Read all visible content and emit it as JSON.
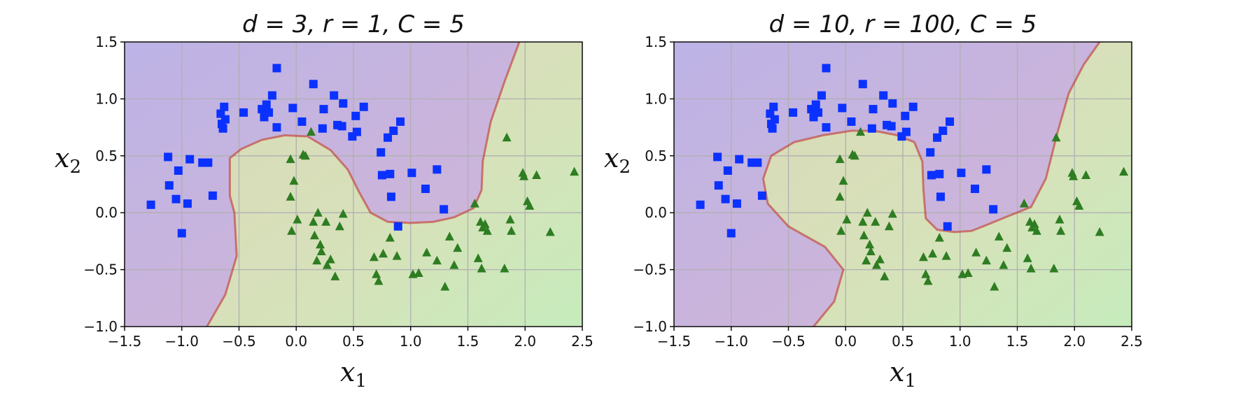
{
  "colors": {
    "class0_marker": "#0b31ff",
    "class1_marker": "#2e7d22",
    "region0": "#c8b2dd",
    "region1": "#d7e1b5",
    "boundary": "#c0392b"
  },
  "chart_data": [
    {
      "type": "scatter",
      "title": "d = 3, r = 1, C = 5",
      "xlabel": "x1",
      "ylabel": "x2",
      "xlim": [
        -1.5,
        2.5
      ],
      "ylim": [
        -1.0,
        1.5
      ],
      "xticks": [
        "−1.5",
        "−1.0",
        "−0.5",
        "0.0",
        "0.5",
        "1.0",
        "1.5",
        "2.0",
        "2.5"
      ],
      "yticks": [
        "−1.0",
        "−0.5",
        "0.0",
        "0.5",
        "1.0",
        "1.5"
      ],
      "grid": true,
      "background": "decision-function contour, purple = class 0, yellow-green = class 1",
      "decision_boundary": [
        [
          -0.78,
          -1.0
        ],
        [
          -0.62,
          -0.72
        ],
        [
          -0.52,
          -0.38
        ],
        [
          -0.54,
          0.0
        ],
        [
          -0.58,
          0.15
        ],
        [
          -0.58,
          0.48
        ],
        [
          -0.48,
          0.56
        ],
        [
          -0.3,
          0.64
        ],
        [
          -0.1,
          0.68
        ],
        [
          0.1,
          0.67
        ],
        [
          0.3,
          0.55
        ],
        [
          0.45,
          0.38
        ],
        [
          0.55,
          0.18
        ],
        [
          0.65,
          0.0
        ],
        [
          0.8,
          -0.08
        ],
        [
          1.0,
          -0.09
        ],
        [
          1.2,
          -0.08
        ],
        [
          1.38,
          -0.04
        ],
        [
          1.55,
          0.04
        ],
        [
          1.62,
          0.2
        ],
        [
          1.63,
          0.45
        ],
        [
          1.7,
          0.8
        ],
        [
          1.82,
          1.15
        ],
        [
          1.95,
          1.5
        ]
      ],
      "series": [
        {
          "marker": "square",
          "points": [
            [
              -1.27,
              0.07
            ],
            [
              -1.12,
              0.49
            ],
            [
              -1.11,
              0.24
            ],
            [
              -1.05,
              0.12
            ],
            [
              -1.03,
              0.37
            ],
            [
              -1.0,
              -0.18
            ],
            [
              -0.95,
              0.08
            ],
            [
              -0.93,
              0.47
            ],
            [
              -0.82,
              0.44
            ],
            [
              -0.77,
              0.44
            ],
            [
              -0.73,
              0.15
            ],
            [
              -0.66,
              0.87
            ],
            [
              -0.65,
              0.78
            ],
            [
              -0.64,
              0.74
            ],
            [
              -0.63,
              0.93
            ],
            [
              -0.62,
              0.82
            ],
            [
              -0.46,
              0.88
            ],
            [
              -0.3,
              0.91
            ],
            [
              -0.28,
              0.84
            ],
            [
              -0.26,
              0.95
            ],
            [
              -0.24,
              0.88
            ],
            [
              -0.21,
              1.03
            ],
            [
              -0.17,
              0.75
            ],
            [
              -0.17,
              1.27
            ],
            [
              -0.03,
              0.92
            ],
            [
              0.05,
              0.8
            ],
            [
              0.15,
              1.13
            ],
            [
              0.23,
              0.74
            ],
            [
              0.24,
              0.91
            ],
            [
              0.33,
              1.03
            ],
            [
              0.36,
              0.77
            ],
            [
              0.4,
              0.76
            ],
            [
              0.41,
              0.96
            ],
            [
              0.49,
              0.67
            ],
            [
              0.52,
              0.85
            ],
            [
              0.53,
              0.71
            ],
            [
              0.59,
              0.93
            ],
            [
              0.74,
              0.53
            ],
            [
              0.75,
              0.33
            ],
            [
              0.8,
              0.66
            ],
            [
              0.82,
              0.34
            ],
            [
              0.83,
              0.14
            ],
            [
              0.85,
              0.72
            ],
            [
              0.89,
              -0.12
            ],
            [
              0.91,
              0.8
            ],
            [
              1.01,
              0.35
            ],
            [
              1.13,
              0.21
            ],
            [
              1.23,
              0.38
            ],
            [
              1.29,
              0.03
            ]
          ]
        },
        {
          "marker": "triangle",
          "points": [
            [
              -0.05,
              0.47
            ],
            [
              -0.05,
              0.14
            ],
            [
              -0.04,
              -0.16
            ],
            [
              -0.02,
              0.28
            ],
            [
              0.01,
              -0.06
            ],
            [
              0.06,
              0.51
            ],
            [
              0.08,
              0.5
            ],
            [
              0.13,
              0.71
            ],
            [
              0.15,
              -0.08
            ],
            [
              0.16,
              -0.2
            ],
            [
              0.18,
              -0.42
            ],
            [
              0.19,
              0.0
            ],
            [
              0.21,
              -0.28
            ],
            [
              0.22,
              -0.34
            ],
            [
              0.26,
              -0.08
            ],
            [
              0.27,
              -0.46
            ],
            [
              0.3,
              -0.41
            ],
            [
              0.34,
              -0.56
            ],
            [
              0.38,
              -0.12
            ],
            [
              0.41,
              -0.01
            ],
            [
              0.68,
              -0.39
            ],
            [
              0.7,
              -0.54
            ],
            [
              0.72,
              -0.6
            ],
            [
              0.76,
              -0.36
            ],
            [
              0.82,
              -0.22
            ],
            [
              0.88,
              -0.38
            ],
            [
              1.02,
              -0.54
            ],
            [
              1.07,
              -0.53
            ],
            [
              1.14,
              -0.35
            ],
            [
              1.23,
              -0.42
            ],
            [
              1.3,
              -0.65
            ],
            [
              1.34,
              -0.21
            ],
            [
              1.38,
              -0.46
            ],
            [
              1.41,
              -0.31
            ],
            [
              1.56,
              0.08
            ],
            [
              1.59,
              -0.4
            ],
            [
              1.61,
              -0.08
            ],
            [
              1.62,
              -0.49
            ],
            [
              1.63,
              -0.13
            ],
            [
              1.65,
              -0.1
            ],
            [
              1.67,
              -0.16
            ],
            [
              1.82,
              -0.49
            ],
            [
              1.84,
              0.66
            ],
            [
              1.87,
              -0.06
            ],
            [
              1.88,
              -0.16
            ],
            [
              1.98,
              0.35
            ],
            [
              1.99,
              0.32
            ],
            [
              2.02,
              0.1
            ],
            [
              2.04,
              0.06
            ],
            [
              2.1,
              0.33
            ],
            [
              2.22,
              -0.17
            ],
            [
              2.43,
              0.36
            ]
          ]
        }
      ]
    },
    {
      "type": "scatter",
      "title": "d = 10, r = 100, C = 5",
      "xlabel": "x1",
      "ylabel": "x2",
      "xlim": [
        -1.5,
        2.5
      ],
      "ylim": [
        -1.0,
        1.5
      ],
      "xticks": [
        "−1.5",
        "−1.0",
        "−0.5",
        "0.0",
        "0.5",
        "1.0",
        "1.5",
        "2.0",
        "2.5"
      ],
      "yticks": [
        "−1.0",
        "−0.5",
        "0.0",
        "0.5",
        "1.0",
        "1.5"
      ],
      "grid": true,
      "background": "decision-function contour, purple = class 0, yellow-green = class 1",
      "decision_boundary": [
        [
          -0.28,
          -1.0
        ],
        [
          -0.1,
          -0.78
        ],
        [
          -0.02,
          -0.5
        ],
        [
          -0.18,
          -0.3
        ],
        [
          -0.5,
          -0.12
        ],
        [
          -0.68,
          0.08
        ],
        [
          -0.72,
          0.3
        ],
        [
          -0.65,
          0.5
        ],
        [
          -0.45,
          0.62
        ],
        [
          -0.2,
          0.68
        ],
        [
          0.05,
          0.72
        ],
        [
          0.25,
          0.72
        ],
        [
          0.45,
          0.68
        ],
        [
          0.6,
          0.62
        ],
        [
          0.67,
          0.45
        ],
        [
          0.68,
          0.2
        ],
        [
          0.7,
          -0.05
        ],
        [
          0.8,
          -0.15
        ],
        [
          0.95,
          -0.17
        ],
        [
          1.1,
          -0.16
        ],
        [
          1.25,
          -0.1
        ],
        [
          1.42,
          -0.03
        ],
        [
          1.62,
          0.05
        ],
        [
          1.75,
          0.3
        ],
        [
          1.85,
          0.7
        ],
        [
          1.95,
          1.05
        ],
        [
          2.08,
          1.3
        ],
        [
          2.22,
          1.5
        ]
      ],
      "series": [
        {
          "marker": "square",
          "points": [
            [
              -1.27,
              0.07
            ],
            [
              -1.12,
              0.49
            ],
            [
              -1.11,
              0.24
            ],
            [
              -1.05,
              0.12
            ],
            [
              -1.03,
              0.37
            ],
            [
              -1.0,
              -0.18
            ],
            [
              -0.95,
              0.08
            ],
            [
              -0.93,
              0.47
            ],
            [
              -0.82,
              0.44
            ],
            [
              -0.77,
              0.44
            ],
            [
              -0.73,
              0.15
            ],
            [
              -0.66,
              0.87
            ],
            [
              -0.65,
              0.78
            ],
            [
              -0.64,
              0.74
            ],
            [
              -0.63,
              0.93
            ],
            [
              -0.62,
              0.82
            ],
            [
              -0.46,
              0.88
            ],
            [
              -0.3,
              0.91
            ],
            [
              -0.28,
              0.84
            ],
            [
              -0.26,
              0.95
            ],
            [
              -0.24,
              0.88
            ],
            [
              -0.21,
              1.03
            ],
            [
              -0.17,
              0.75
            ],
            [
              -0.17,
              1.27
            ],
            [
              -0.03,
              0.92
            ],
            [
              0.05,
              0.8
            ],
            [
              0.15,
              1.13
            ],
            [
              0.23,
              0.74
            ],
            [
              0.24,
              0.91
            ],
            [
              0.33,
              1.03
            ],
            [
              0.36,
              0.77
            ],
            [
              0.4,
              0.76
            ],
            [
              0.41,
              0.96
            ],
            [
              0.49,
              0.67
            ],
            [
              0.52,
              0.85
            ],
            [
              0.53,
              0.71
            ],
            [
              0.59,
              0.93
            ],
            [
              0.74,
              0.53
            ],
            [
              0.75,
              0.33
            ],
            [
              0.8,
              0.66
            ],
            [
              0.82,
              0.34
            ],
            [
              0.83,
              0.14
            ],
            [
              0.85,
              0.72
            ],
            [
              0.89,
              -0.12
            ],
            [
              0.91,
              0.8
            ],
            [
              1.01,
              0.35
            ],
            [
              1.13,
              0.21
            ],
            [
              1.23,
              0.38
            ],
            [
              1.29,
              0.03
            ]
          ]
        },
        {
          "marker": "triangle",
          "points": [
            [
              -0.05,
              0.47
            ],
            [
              -0.05,
              0.14
            ],
            [
              -0.04,
              -0.16
            ],
            [
              -0.02,
              0.28
            ],
            [
              0.01,
              -0.06
            ],
            [
              0.06,
              0.51
            ],
            [
              0.08,
              0.5
            ],
            [
              0.13,
              0.71
            ],
            [
              0.15,
              -0.08
            ],
            [
              0.16,
              -0.2
            ],
            [
              0.18,
              -0.42
            ],
            [
              0.19,
              0.0
            ],
            [
              0.21,
              -0.28
            ],
            [
              0.22,
              -0.34
            ],
            [
              0.26,
              -0.08
            ],
            [
              0.27,
              -0.46
            ],
            [
              0.3,
              -0.41
            ],
            [
              0.34,
              -0.56
            ],
            [
              0.38,
              -0.12
            ],
            [
              0.41,
              -0.01
            ],
            [
              0.68,
              -0.39
            ],
            [
              0.7,
              -0.54
            ],
            [
              0.72,
              -0.6
            ],
            [
              0.76,
              -0.36
            ],
            [
              0.82,
              -0.22
            ],
            [
              0.88,
              -0.38
            ],
            [
              1.02,
              -0.54
            ],
            [
              1.07,
              -0.53
            ],
            [
              1.14,
              -0.35
            ],
            [
              1.23,
              -0.42
            ],
            [
              1.3,
              -0.65
            ],
            [
              1.34,
              -0.21
            ],
            [
              1.38,
              -0.46
            ],
            [
              1.41,
              -0.31
            ],
            [
              1.56,
              0.08
            ],
            [
              1.59,
              -0.4
            ],
            [
              1.61,
              -0.08
            ],
            [
              1.62,
              -0.49
            ],
            [
              1.63,
              -0.13
            ],
            [
              1.65,
              -0.1
            ],
            [
              1.67,
              -0.16
            ],
            [
              1.82,
              -0.49
            ],
            [
              1.84,
              0.66
            ],
            [
              1.87,
              -0.06
            ],
            [
              1.88,
              -0.16
            ],
            [
              1.98,
              0.35
            ],
            [
              1.99,
              0.32
            ],
            [
              2.02,
              0.1
            ],
            [
              2.04,
              0.06
            ],
            [
              2.1,
              0.33
            ],
            [
              2.22,
              -0.17
            ],
            [
              2.43,
              0.36
            ]
          ]
        }
      ]
    }
  ]
}
